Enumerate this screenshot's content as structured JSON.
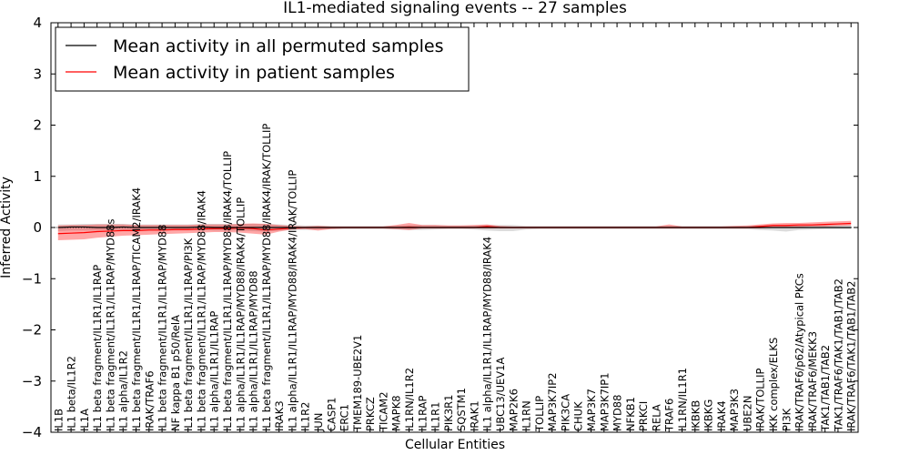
{
  "chart_data": {
    "type": "line",
    "title": "IL1-mediated signaling events -- 27 samples",
    "xlabel": "Cellular Entities",
    "ylabel": "Inferred Activity",
    "ylim": [
      -4,
      4
    ],
    "yticks": [
      -4,
      -3,
      -2,
      -1,
      0,
      1,
      2,
      3,
      4
    ],
    "ytick_labels": [
      "−4",
      "−3",
      "−2",
      "−1",
      "0",
      "1",
      "2",
      "3",
      "4"
    ],
    "grid": false,
    "legend_position": "top-left",
    "categories": [
      "IL1B",
      "IL1 beta/IL1R2",
      "IL1A",
      "IL1 beta fragment/IL1R1/IL1RAP",
      "IL1 beta fragment/IL1R1/IL1RAP/MYD88s",
      "IL1 alpha/IL1R2",
      "IL1 beta fragment/IL1R1/IL1RAP/TICAM2/IRAK4",
      "IRAK/TRAF6",
      "IL1 beta fragment/IL1R1/IL1RAP/MYD88",
      "NF kappa B1 p50/RelA",
      "IL1 beta fragment/IL1R1/IL1RAP/PI3K",
      "IL1 beta fragment/IL1R1/IL1RAP/MYD88/IRAK4",
      "IL1 alpha/IL1R1/IL1RAP",
      "IL1 beta fragment/IL1R1/IL1RAP/MYD88/IRAK4/TOLLIP",
      "IL1 alpha/IL1R1/IL1RAP/MYD88/IRAK4/TOLLIP",
      "IL1 alpha/IL1R1/IL1RAP/MYD88",
      "IL1 beta fragment/IL1R1/IL1RAP/MYD88/IRAK4/IRAK/TOLLIP",
      "IRAK3",
      "IL1 alpha/IL1R1/IL1RAP/MYD88/IRAK4/IRAK/TOLLIP",
      "IL1R2",
      "JUN",
      "CASP1",
      "ERC1",
      "TMEM189-UBE2V1",
      "PRKCZ",
      "TICAM2",
      "MAPK8",
      "IL1RN/IL1R2",
      "IL1RAP",
      "IL1R1",
      "PIK3R1",
      "SQSTM1",
      "IRAK1",
      "IL1 alpha/IL1R1/IL1RAP/MYD88/IRAK4",
      "UBC13/UEV1A",
      "MAP2K6",
      "IL1RN",
      "TOLLIP",
      "MAP3K7IP2",
      "PIK3CA",
      "CHUK",
      "MAP3K7",
      "MAP3K7IP1",
      "MYD88",
      "NFKB1",
      "PRKCI",
      "RELA",
      "TRAF6",
      "IL1RN/IL1R1",
      "IKBKB",
      "IKBKG",
      "IRAK4",
      "MAP3K3",
      "UBE2N",
      "IRAK/TOLLIP",
      "IKK complex/ELKS",
      "PI3K",
      "IRAK/TRAF6/p62/Atypical PKCs",
      "IRAK/TRAF6/MEKK3",
      "TAK1/TAB1/TAB2",
      "TAK1/TRAF6/TAK1/TAB1/TAB2",
      "IRAK/TRAF6/TAK1/TAB1/TAB2"
    ],
    "series": [
      {
        "name": "Mean activity in all permuted samples",
        "color": "#000000",
        "values": [
          0.0,
          0.01,
          0.01,
          0.0,
          0.0,
          0.01,
          0.0,
          0.0,
          0.0,
          0.0,
          0.0,
          0.01,
          0.0,
          0.0,
          0.0,
          0.0,
          0.0,
          0.0,
          0.0,
          0.0,
          0.0,
          0.0,
          0.0,
          0.0,
          0.0,
          0.0,
          0.0,
          0.0,
          0.0,
          0.0,
          0.0,
          0.0,
          0.0,
          0.0,
          0.0,
          0.0,
          0.0,
          0.0,
          0.0,
          0.0,
          0.0,
          0.0,
          0.0,
          0.0,
          0.0,
          0.0,
          0.0,
          0.0,
          0.0,
          0.0,
          0.0,
          0.0,
          0.0,
          0.0,
          0.0,
          0.0,
          0.0,
          0.0,
          0.0,
          0.0,
          0.0,
          0.0
        ],
        "band": {
          "lower": [
            -0.07,
            -0.06,
            -0.06,
            -0.06,
            -0.05,
            -0.05,
            -0.05,
            -0.05,
            -0.06,
            -0.05,
            -0.05,
            -0.05,
            -0.06,
            -0.06,
            -0.06,
            -0.07,
            -0.08,
            -0.06,
            -0.05,
            -0.05,
            -0.04,
            -0.03,
            -0.03,
            -0.03,
            -0.03,
            -0.03,
            -0.04,
            -0.05,
            -0.05,
            -0.04,
            -0.03,
            -0.03,
            -0.04,
            -0.06,
            -0.07,
            -0.07,
            -0.04,
            -0.03,
            -0.03,
            -0.03,
            -0.03,
            -0.03,
            -0.03,
            -0.03,
            -0.03,
            -0.03,
            -0.03,
            -0.03,
            -0.03,
            -0.03,
            -0.03,
            -0.03,
            -0.03,
            -0.03,
            -0.05,
            -0.06,
            -0.08,
            -0.05,
            -0.04,
            -0.03,
            -0.03,
            -0.03
          ],
          "upper": [
            0.06,
            0.06,
            0.07,
            0.07,
            0.07,
            0.07,
            0.06,
            0.06,
            0.06,
            0.06,
            0.06,
            0.07,
            0.07,
            0.07,
            0.07,
            0.07,
            0.07,
            0.06,
            0.05,
            0.04,
            0.04,
            0.03,
            0.03,
            0.03,
            0.03,
            0.03,
            0.04,
            0.05,
            0.05,
            0.05,
            0.04,
            0.04,
            0.04,
            0.05,
            0.05,
            0.05,
            0.03,
            0.03,
            0.03,
            0.03,
            0.03,
            0.03,
            0.03,
            0.03,
            0.03,
            0.03,
            0.03,
            0.03,
            0.03,
            0.03,
            0.03,
            0.03,
            0.03,
            0.03,
            0.04,
            0.04,
            0.05,
            0.05,
            0.05,
            0.05,
            0.05,
            0.05
          ]
        }
      },
      {
        "name": "Mean activity in patient samples",
        "color": "#ff0000",
        "values": [
          -0.12,
          -0.11,
          -0.1,
          -0.08,
          -0.07,
          -0.06,
          -0.06,
          -0.05,
          -0.05,
          -0.04,
          -0.04,
          -0.03,
          -0.02,
          -0.02,
          -0.01,
          -0.02,
          -0.05,
          -0.03,
          -0.01,
          0.0,
          0.0,
          0.0,
          0.0,
          0.0,
          0.0,
          0.0,
          0.0,
          0.01,
          0.0,
          0.0,
          0.0,
          0.0,
          0.0,
          0.02,
          0.0,
          0.0,
          0.0,
          0.0,
          0.0,
          0.0,
          0.0,
          0.0,
          0.0,
          0.0,
          0.0,
          0.0,
          0.0,
          0.0,
          0.0,
          0.0,
          0.0,
          0.0,
          0.0,
          0.0,
          0.02,
          0.04,
          0.04,
          0.05,
          0.05,
          0.06,
          0.07,
          0.08
        ],
        "band": {
          "lower": [
            -0.25,
            -0.24,
            -0.23,
            -0.2,
            -0.18,
            -0.16,
            -0.15,
            -0.14,
            -0.13,
            -0.12,
            -0.11,
            -0.1,
            -0.09,
            -0.09,
            -0.1,
            -0.12,
            -0.14,
            -0.08,
            -0.04,
            -0.03,
            -0.06,
            -0.03,
            -0.02,
            -0.02,
            -0.02,
            -0.02,
            -0.03,
            -0.05,
            -0.02,
            -0.02,
            -0.02,
            -0.02,
            -0.02,
            -0.02,
            -0.02,
            -0.02,
            -0.02,
            -0.02,
            -0.02,
            -0.02,
            -0.02,
            -0.02,
            -0.02,
            -0.02,
            -0.02,
            -0.02,
            -0.02,
            -0.02,
            -0.02,
            -0.02,
            -0.02,
            -0.02,
            -0.02,
            -0.02,
            -0.02,
            -0.01,
            0.0,
            0.01,
            0.02,
            0.02,
            0.03,
            0.04
          ],
          "upper": [
            0.04,
            0.05,
            0.05,
            0.06,
            0.06,
            0.06,
            0.05,
            0.05,
            0.05,
            0.05,
            0.05,
            0.06,
            0.06,
            0.06,
            0.07,
            0.08,
            0.07,
            0.05,
            0.03,
            0.02,
            0.03,
            0.02,
            0.02,
            0.02,
            0.02,
            0.02,
            0.05,
            0.09,
            0.05,
            0.05,
            0.04,
            0.04,
            0.05,
            0.06,
            0.03,
            0.02,
            0.02,
            0.02,
            0.02,
            0.02,
            0.02,
            0.02,
            0.02,
            0.02,
            0.02,
            0.02,
            0.02,
            0.06,
            0.02,
            0.02,
            0.02,
            0.02,
            0.03,
            0.04,
            0.06,
            0.08,
            0.09,
            0.09,
            0.1,
            0.11,
            0.12,
            0.13
          ]
        }
      }
    ]
  }
}
